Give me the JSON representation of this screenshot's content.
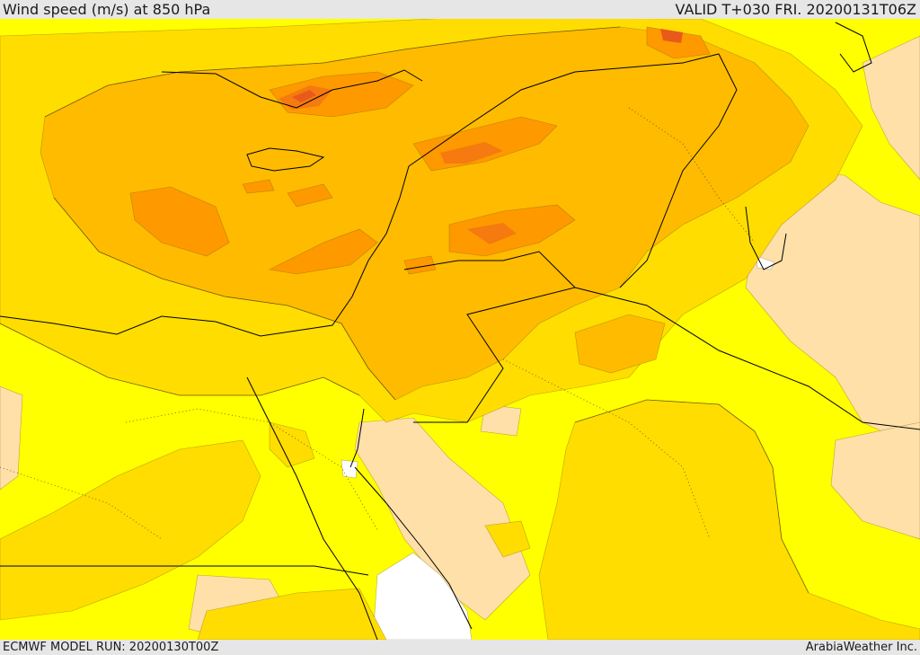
{
  "header": {
    "title": "Wind speed (m/s) at 850 hPa",
    "valid_time": "VALID T+030 FRI. 20200131T06Z"
  },
  "footer": {
    "model_run": "ECMWF MODEL RUN: 20200130T00Z",
    "credit": "ArabiaWeather Inc."
  },
  "map": {
    "colors": {
      "calm_white": "#ffffff",
      "light_tan": "#ffe0a8",
      "yellow": "#ffff00",
      "gold": "#ffdd00",
      "amber": "#ffbb00",
      "orange": "#ff9900",
      "dark_orange": "#f57a10",
      "red_orange": "#e85a1c",
      "border_line": "#000000"
    }
  }
}
